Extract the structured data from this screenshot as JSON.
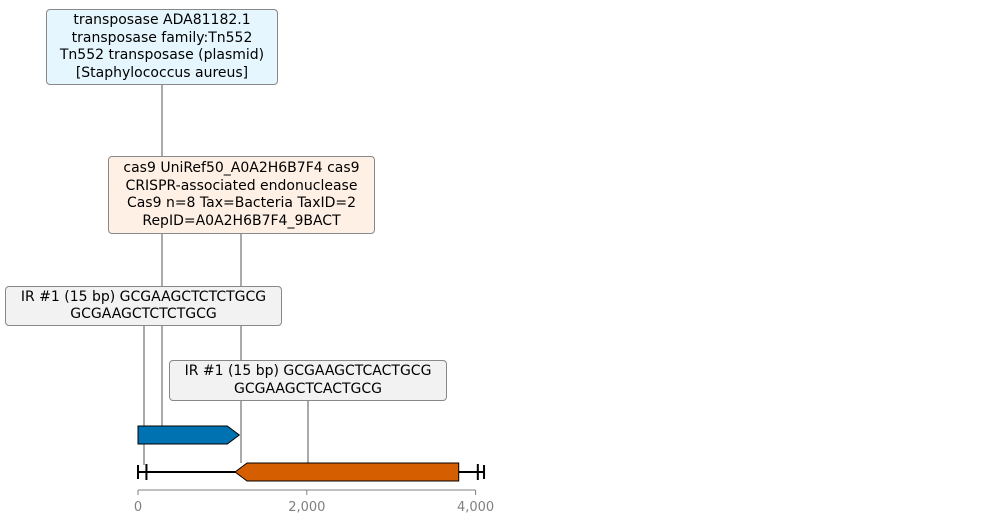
{
  "features": [
    {
      "id": "transposase",
      "lines": [
        "transposase ADA81182.1",
        "transposase family:Tn552",
        "Tn552 transposase (plasmid)",
        "[Staphylococcus aureus]"
      ],
      "start": 0,
      "end": 1200,
      "strand": 1,
      "color": "#0072b2",
      "box_color": "#e5f6ff"
    },
    {
      "id": "cas9",
      "lines": [
        "cas9 UniRef50_A0A2H6B7F4 cas9",
        "CRISPR-associated endonuclease",
        "Cas9 n=8 Tax=Bacteria TaxID=2",
        "RepID=A0A2H6B7F4_9BACT"
      ],
      "start": 1150,
      "end": 3800,
      "strand": -1,
      "color": "#d55e00",
      "box_color": "#fff0e5"
    },
    {
      "id": "ir1",
      "lines": [
        "IR #1 (15 bp) GCGAAGCTCTCTGCG",
        "GCGAAGCTCTCTGCG"
      ],
      "start": 100,
      "end": 115,
      "box_color": "#f2f2f2"
    },
    {
      "id": "ir2",
      "lines": [
        "IR #1 (15 bp) GCGAAGCTCACTGCG",
        "GCGAAGCTCACTGCG"
      ],
      "start": 4050,
      "end": 4065,
      "box_color": "#f2f2f2"
    }
  ],
  "axis": {
    "min": 0,
    "max": 4100,
    "ticks": [
      {
        "value": 0,
        "label": "0"
      },
      {
        "value": 2000,
        "label": "2,000"
      },
      {
        "value": 4000,
        "label": "4,000"
      }
    ]
  }
}
